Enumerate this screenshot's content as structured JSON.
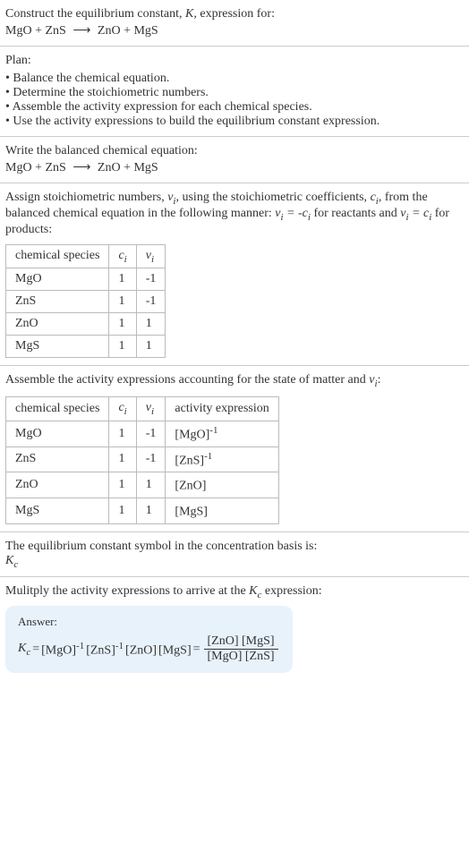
{
  "header": {
    "prompt": "Construct the equilibrium constant, ",
    "k_var": "K",
    "prompt_after": ", expression for:",
    "reaction": {
      "lhs1": "MgO",
      "lhs2": "ZnS",
      "rhs1": "ZnO",
      "rhs2": "MgS"
    }
  },
  "plan": {
    "title": "Plan:",
    "items": [
      "Balance the chemical equation.",
      "Determine the stoichiometric numbers.",
      "Assemble the activity expression for each chemical species.",
      "Use the activity expressions to build the equilibrium constant expression."
    ]
  },
  "balanced": {
    "title": "Write the balanced chemical equation:",
    "reaction": {
      "lhs1": "MgO",
      "lhs2": "ZnS",
      "rhs1": "ZnO",
      "rhs2": "MgS"
    }
  },
  "stoich": {
    "intro_a": "Assign stoichiometric numbers, ",
    "vi": "ν",
    "vi_sub": "i",
    "intro_b": ", using the stoichiometric coefficients, ",
    "ci": "c",
    "ci_sub": "i",
    "intro_c": ", from the balanced chemical equation in the following manner: ",
    "rel_reac": " = -",
    "rel_reac_after": " for reactants and ",
    "rel_prod": " = ",
    "rel_prod_after": " for products:",
    "headers": {
      "species": "chemical species",
      "c": "c",
      "c_sub": "i",
      "v": "ν",
      "v_sub": "i"
    },
    "rows": [
      {
        "sp": "MgO",
        "c": "1",
        "v": "-1"
      },
      {
        "sp": "ZnS",
        "c": "1",
        "v": "-1"
      },
      {
        "sp": "ZnO",
        "c": "1",
        "v": "1"
      },
      {
        "sp": "MgS",
        "c": "1",
        "v": "1"
      }
    ]
  },
  "activity": {
    "title_a": "Assemble the activity expressions accounting for the state of matter and ",
    "title_b": ":",
    "headers": {
      "species": "chemical species",
      "c": "c",
      "c_sub": "i",
      "v": "ν",
      "v_sub": "i",
      "act": "activity expression"
    },
    "rows": [
      {
        "sp": "MgO",
        "c": "1",
        "v": "-1",
        "act_base": "[MgO]",
        "act_exp": "-1"
      },
      {
        "sp": "ZnS",
        "c": "1",
        "v": "-1",
        "act_base": "[ZnS]",
        "act_exp": "-1"
      },
      {
        "sp": "ZnO",
        "c": "1",
        "v": "1",
        "act_base": "[ZnO]",
        "act_exp": ""
      },
      {
        "sp": "MgS",
        "c": "1",
        "v": "1",
        "act_base": "[MgS]",
        "act_exp": ""
      }
    ]
  },
  "symbol": {
    "text": "The equilibrium constant symbol in the concentration basis is:",
    "kc_base": "K",
    "kc_sub": "c"
  },
  "multiply": {
    "text_a": "Mulitply the activity expressions to arrive at the ",
    "text_b": " expression:"
  },
  "answer": {
    "label": "Answer:",
    "kc_base": "K",
    "kc_sub": "c",
    "terms": [
      {
        "base": "[MgO]",
        "exp": "-1"
      },
      {
        "base": "[ZnS]",
        "exp": "-1"
      },
      {
        "base": "[ZnO]",
        "exp": ""
      },
      {
        "base": "[MgS]",
        "exp": ""
      }
    ],
    "frac_num": "[ZnO] [MgS]",
    "frac_den": "[MgO] [ZnS]"
  },
  "style": {
    "border_color": "#cccccc",
    "answer_bg": "#e8f2fb",
    "font_size": 14,
    "table_border": "#bbbbbb"
  }
}
